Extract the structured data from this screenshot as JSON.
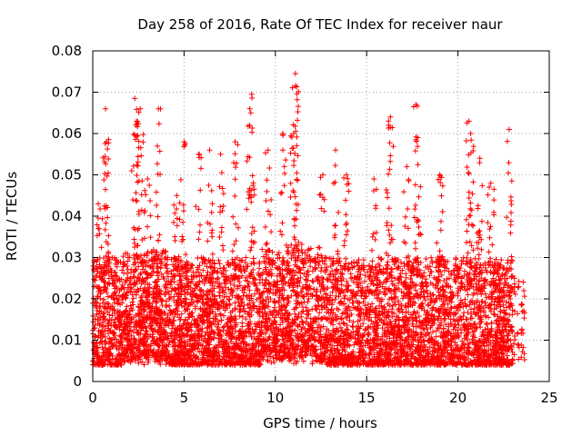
{
  "chart_data": {
    "type": "scatter",
    "title": "Day 258 of 2016, Rate Of TEC Index for receiver naur",
    "xlabel": "GPS time / hours",
    "ylabel": "ROTI / TECUs",
    "xlim": [
      0,
      25
    ],
    "ylim": [
      0,
      0.08
    ],
    "x_ticks": [
      0,
      5,
      10,
      15,
      20,
      25
    ],
    "x_tick_labels": [
      "0",
      "5",
      "10",
      "15",
      "20",
      "25"
    ],
    "y_ticks": [
      0,
      0.01,
      0.02,
      0.03,
      0.04,
      0.05,
      0.06,
      0.07,
      0.08
    ],
    "y_tick_labels": [
      "0",
      "0.01",
      "0.02",
      "0.03",
      "0.04",
      "0.05",
      "0.06",
      "0.07",
      "0.08"
    ],
    "grid": true,
    "marker": "+",
    "series": [
      {
        "name": "ROTI",
        "color": "#ff0000",
        "x_start": 0.0,
        "x_end": 23.0,
        "typical_min": 0.004,
        "typical_max": 0.03,
        "late_points_x": [
          23.1,
          23.3,
          23.5,
          23.6
        ],
        "spikes": [
          {
            "x": 0.3,
            "y": 0.043
          },
          {
            "x": 0.7,
            "y": 0.066
          },
          {
            "x": 0.75,
            "y": 0.058
          },
          {
            "x": 2.3,
            "y": 0.0685
          },
          {
            "x": 2.6,
            "y": 0.066
          },
          {
            "x": 2.4,
            "y": 0.063
          },
          {
            "x": 3.6,
            "y": 0.066
          },
          {
            "x": 3.0,
            "y": 0.049
          },
          {
            "x": 5.0,
            "y": 0.058
          },
          {
            "x": 4.6,
            "y": 0.045
          },
          {
            "x": 5.8,
            "y": 0.055
          },
          {
            "x": 6.4,
            "y": 0.056
          },
          {
            "x": 7.0,
            "y": 0.055
          },
          {
            "x": 7.8,
            "y": 0.058
          },
          {
            "x": 8.7,
            "y": 0.0695
          },
          {
            "x": 8.6,
            "y": 0.066
          },
          {
            "x": 9.6,
            "y": 0.056
          },
          {
            "x": 10.4,
            "y": 0.06
          },
          {
            "x": 11.1,
            "y": 0.0745
          },
          {
            "x": 11.1,
            "y": 0.0715
          },
          {
            "x": 11.0,
            "y": 0.06
          },
          {
            "x": 12.6,
            "y": 0.05
          },
          {
            "x": 13.3,
            "y": 0.056
          },
          {
            "x": 13.9,
            "y": 0.05
          },
          {
            "x": 16.3,
            "y": 0.064
          },
          {
            "x": 16.2,
            "y": 0.062
          },
          {
            "x": 17.2,
            "y": 0.052
          },
          {
            "x": 17.7,
            "y": 0.067
          },
          {
            "x": 17.8,
            "y": 0.059
          },
          {
            "x": 19.0,
            "y": 0.05
          },
          {
            "x": 20.6,
            "y": 0.063
          },
          {
            "x": 20.7,
            "y": 0.06
          },
          {
            "x": 21.2,
            "y": 0.054
          },
          {
            "x": 22.8,
            "y": 0.061
          },
          {
            "x": 21.8,
            "y": 0.048
          },
          {
            "x": 15.4,
            "y": 0.049
          }
        ],
        "sample_points": [
          {
            "x": 0.5,
            "y": 0.012
          },
          {
            "x": 1.5,
            "y": 0.015
          },
          {
            "x": 2.5,
            "y": 0.018
          },
          {
            "x": 3.5,
            "y": 0.014
          },
          {
            "x": 4.5,
            "y": 0.012
          },
          {
            "x": 5.5,
            "y": 0.011
          },
          {
            "x": 6.5,
            "y": 0.012
          },
          {
            "x": 7.5,
            "y": 0.013
          },
          {
            "x": 8.5,
            "y": 0.014
          },
          {
            "x": 9.5,
            "y": 0.013
          },
          {
            "x": 10.5,
            "y": 0.016
          },
          {
            "x": 11.5,
            "y": 0.018
          },
          {
            "x": 12.5,
            "y": 0.015
          },
          {
            "x": 13.5,
            "y": 0.014
          },
          {
            "x": 14.5,
            "y": 0.012
          },
          {
            "x": 15.5,
            "y": 0.011
          },
          {
            "x": 16.5,
            "y": 0.013
          },
          {
            "x": 17.5,
            "y": 0.014
          },
          {
            "x": 18.5,
            "y": 0.013
          },
          {
            "x": 19.5,
            "y": 0.012
          },
          {
            "x": 20.5,
            "y": 0.015
          },
          {
            "x": 21.5,
            "y": 0.016
          },
          {
            "x": 22.5,
            "y": 0.014
          }
        ]
      }
    ]
  }
}
